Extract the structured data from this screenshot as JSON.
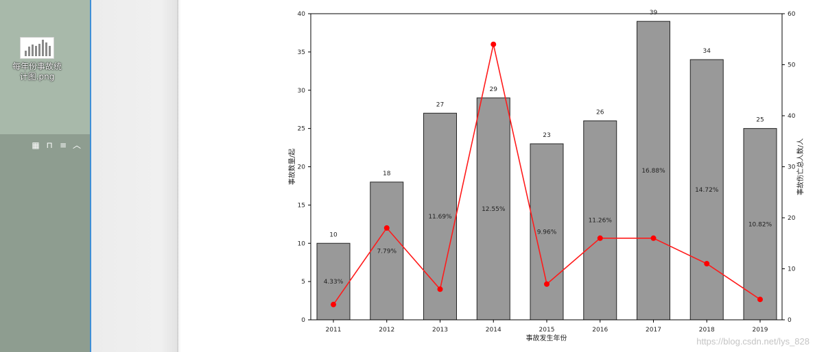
{
  "desktop": {
    "icon_label": "每年份事故统计图.png",
    "toolbar_icons": [
      "grid-icon",
      "lock-icon",
      "menu-icon",
      "chevron-up-icon"
    ]
  },
  "watermark": "https://blog.csdn.net/lys_828",
  "chart_data": {
    "type": "bar",
    "categories": [
      "2011",
      "2012",
      "2013",
      "2014",
      "2015",
      "2016",
      "2017",
      "2018",
      "2019"
    ],
    "series": [
      {
        "values": [
          10,
          18,
          27,
          29,
          23,
          26,
          39,
          34,
          25
        ],
        "color": "#999999",
        "axis": "left",
        "kind": "bar"
      },
      {
        "values": [
          3,
          18,
          6,
          54,
          7,
          16,
          16,
          11,
          4
        ],
        "color": "#ff1a1a",
        "axis": "right",
        "kind": "line"
      }
    ],
    "bar_labels": [
      "10",
      "18",
      "27",
      "29",
      "23",
      "26",
      "39",
      "34",
      "25"
    ],
    "pct_labels": [
      {
        "text": "4.33%",
        "y": 5
      },
      {
        "text": "7.79%",
        "y": 9
      },
      {
        "text": "11.69%",
        "y": 13.5
      },
      {
        "text": "12.55%",
        "y": 14.5
      },
      {
        "text": "9.96%",
        "y": 11.5
      },
      {
        "text": "11.26%",
        "y": 13
      },
      {
        "text": "16.88%",
        "y": 19.5
      },
      {
        "text": "14.72%",
        "y": 17
      },
      {
        "text": "10.82%",
        "y": 12.5
      }
    ],
    "xlabel": "事故发生年份",
    "ylabel": "事故数量/起",
    "y2label": "事故伤亡总人数/人",
    "ylim": [
      0,
      40
    ],
    "y2lim": [
      0,
      60
    ],
    "yticks": [
      "0",
      "5",
      "10",
      "15",
      "20",
      "25",
      "30",
      "35",
      "40"
    ],
    "y2ticks": [
      "0",
      "10",
      "20",
      "30",
      "40",
      "50",
      "60"
    ],
    "grid": false
  }
}
